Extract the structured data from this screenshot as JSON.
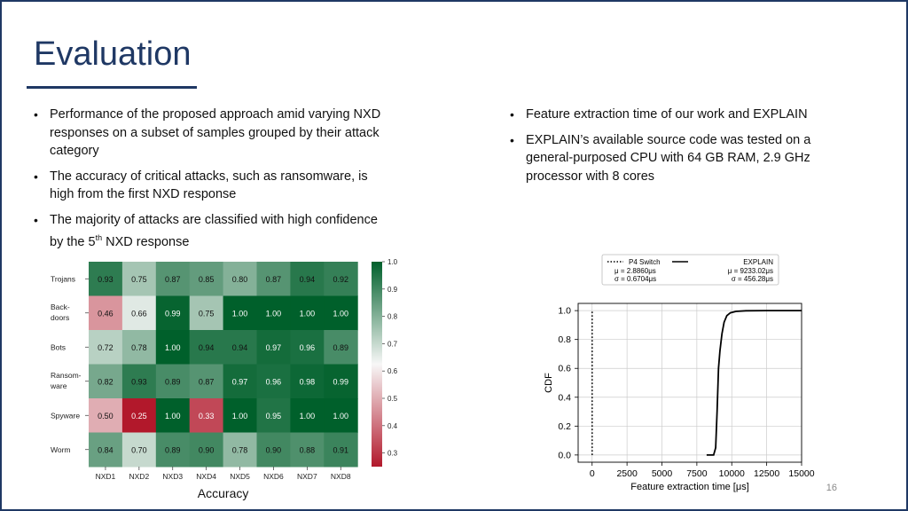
{
  "slide": {
    "title": "Evaluation",
    "left_bullets": [
      "Performance of the proposed approach amid varying NXD responses on a subset of samples grouped by their attack category",
      "The accuracy of critical attacks, such as ransomware, is high from the first NXD response"
    ],
    "left_bullet3": {
      "before": "The majority of attacks are classified with high confidence by the 5",
      "sup": "th",
      "after": " NXD response"
    },
    "right_bullets": [
      "Feature extraction time of our work and EXPLAIN",
      "EXPLAIN’s available source code was tested on a general-purposed CPU with 64 GB RAM, 2.9 GHz processor with 8 cores"
    ],
    "page_number": "16"
  },
  "colors": {
    "title": "#1f3864",
    "heat_high": "#00602b",
    "heat_mid": "#f7f7f7",
    "heat_low": "#b2182b"
  },
  "chart_data": [
    {
      "type": "heatmap",
      "xlabel": "Accuracy",
      "columns": [
        "NXD1",
        "NXD2",
        "NXD3",
        "NXD4",
        "NXD5",
        "NXD6",
        "NXD7",
        "NXD8"
      ],
      "rows": [
        [
          "Trojans"
        ],
        [
          "Back-",
          "doors"
        ],
        [
          "Bots"
        ],
        [
          "Ransom-",
          "ware"
        ],
        [
          "Spyware"
        ],
        [
          "Worm"
        ]
      ],
      "values": [
        [
          0.93,
          0.75,
          0.87,
          0.85,
          0.8,
          0.87,
          0.94,
          0.92
        ],
        [
          0.46,
          0.66,
          0.99,
          0.75,
          1.0,
          1.0,
          1.0,
          1.0
        ],
        [
          0.72,
          0.78,
          1.0,
          0.94,
          0.94,
          0.97,
          0.96,
          0.89
        ],
        [
          0.82,
          0.93,
          0.89,
          0.87,
          0.97,
          0.96,
          0.98,
          0.99
        ],
        [
          0.5,
          0.25,
          1.0,
          0.33,
          1.0,
          0.95,
          1.0,
          1.0
        ],
        [
          0.84,
          0.7,
          0.89,
          0.9,
          0.78,
          0.9,
          0.88,
          0.91
        ]
      ],
      "cell_labels": [
        [
          "0.93",
          "0.75",
          "0.87",
          "0.85",
          "0.80",
          "0.87",
          "0.94",
          "0.92"
        ],
        [
          "0.46",
          "0.66",
          "0.99",
          "0.75",
          "1.00",
          "1.00",
          "1.00",
          "1.00"
        ],
        [
          "0.72",
          "0.78",
          "1.00",
          "0.94",
          "0.94",
          "0.97",
          "0.96",
          "0.89"
        ],
        [
          "0.82",
          "0.93",
          "0.89",
          "0.87",
          "0.97",
          "0.96",
          "0.98",
          "0.99"
        ],
        [
          "0.50",
          "0.25",
          "1.00",
          "0.33",
          "1.00",
          "0.95",
          "1.00",
          "1.00"
        ],
        [
          "0.84",
          "0.70",
          "0.89",
          "0.90",
          "0.78",
          "0.90",
          "0.88",
          "0.91"
        ]
      ],
      "colorbar_range": [
        0.25,
        1.0
      ],
      "colorbar_ticks": [
        "1.0",
        "0.9",
        "0.8",
        "0.7",
        "0.6",
        "0.5",
        "0.4",
        "0.3"
      ]
    },
    {
      "type": "line",
      "xlabel": "Feature extraction time [μs]",
      "ylabel": "CDF",
      "xlim": [
        -1000,
        15000
      ],
      "ylim": [
        -0.05,
        1.05
      ],
      "xticks": [
        "0",
        "2500",
        "5000",
        "7500",
        "10000",
        "12500",
        "15000"
      ],
      "yticks": [
        "0.0",
        "0.2",
        "0.4",
        "0.6",
        "0.8",
        "1.0"
      ],
      "grid": true,
      "legend_position": "top",
      "series": [
        {
          "name": "P4 Switch",
          "style": "dotted",
          "stats": [
            "μ = 2.8860μs",
            "σ = 0.6704μs"
          ],
          "x": [
            0,
            0
          ],
          "y": [
            0.0,
            1.0
          ]
        },
        {
          "name": "EXPLAIN",
          "style": "solid",
          "stats": [
            "μ = 9233.02μs",
            "σ = 456.28μs"
          ],
          "x": [
            8200,
            8700,
            8850,
            8950,
            9050,
            9150,
            9300,
            9450,
            9650,
            9900,
            10300,
            11000,
            12500,
            15000
          ],
          "y": [
            0.0,
            0.0,
            0.05,
            0.3,
            0.6,
            0.72,
            0.84,
            0.92,
            0.965,
            0.985,
            0.995,
            0.999,
            1.0,
            1.0
          ]
        }
      ]
    }
  ]
}
